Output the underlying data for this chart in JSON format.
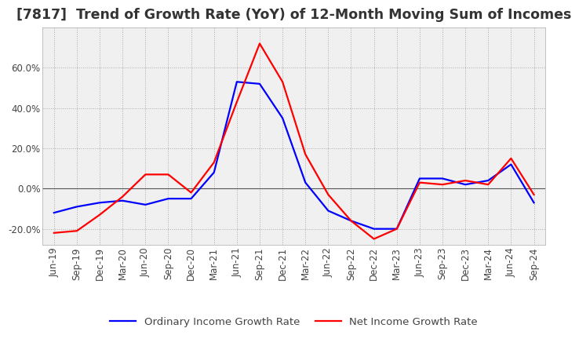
{
  "title": "[7817]  Trend of Growth Rate (YoY) of 12-Month Moving Sum of Incomes",
  "ylim": [
    -28,
    80
  ],
  "yticks": [
    -20.0,
    0.0,
    20.0,
    40.0,
    60.0
  ],
  "x_labels": [
    "Jun-19",
    "Sep-19",
    "Dec-19",
    "Mar-20",
    "Jun-20",
    "Sep-20",
    "Dec-20",
    "Mar-21",
    "Jun-21",
    "Sep-21",
    "Dec-21",
    "Mar-22",
    "Jun-22",
    "Sep-22",
    "Dec-22",
    "Mar-23",
    "Jun-23",
    "Sep-23",
    "Dec-23",
    "Mar-24",
    "Jun-24",
    "Sep-24"
  ],
  "ordinary_income": [
    -12,
    -9,
    -7,
    -6,
    -8,
    -5,
    -5,
    8,
    53,
    52,
    35,
    3,
    -11,
    -16,
    -20,
    -20,
    5,
    5,
    2,
    4,
    12,
    -7
  ],
  "net_income": [
    -22,
    -21,
    -13,
    -4,
    7,
    7,
    -2,
    13,
    43,
    72,
    53,
    17,
    -3,
    -16,
    -25,
    -20,
    3,
    2,
    4,
    2,
    15,
    -3
  ],
  "ordinary_color": "#0000ff",
  "net_color": "#ff0000",
  "legend_ordinary": "Ordinary Income Growth Rate",
  "legend_net": "Net Income Growth Rate",
  "grid_color": "#aaaaaa",
  "background_color": "#ffffff",
  "plot_bg_color": "#f0f0f0",
  "title_fontsize": 12.5,
  "tick_fontsize": 8.5,
  "legend_fontsize": 9.5
}
